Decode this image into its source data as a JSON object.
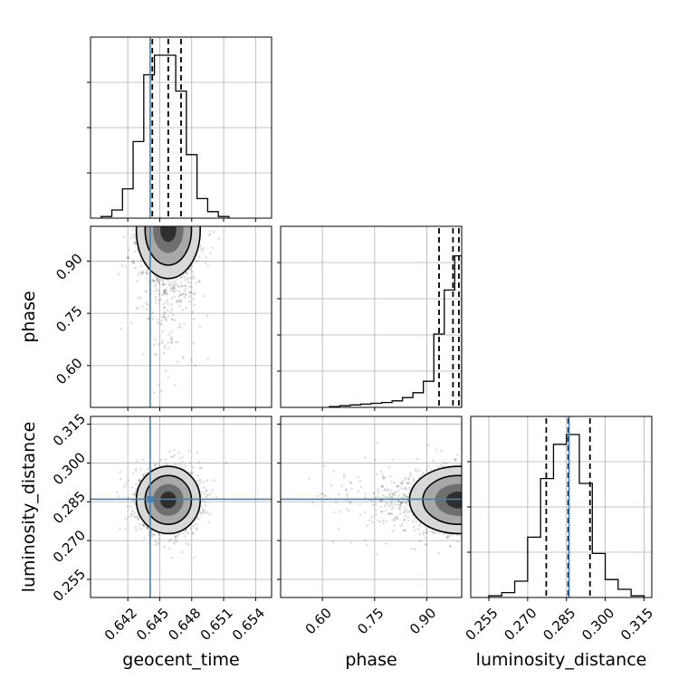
{
  "chart_data": [
    {
      "type": "histogram",
      "panel": "geocent_time",
      "bins": [
        0.6395,
        0.6405,
        0.6415,
        0.6425,
        0.6435,
        0.6445,
        0.6455,
        0.6465,
        0.6475,
        0.6485,
        0.6495,
        0.6505,
        0.6515
      ],
      "counts": [
        1,
        5,
        18,
        47,
        88,
        100,
        100,
        78,
        39,
        12,
        4,
        1
      ],
      "quantiles": [
        0.6443,
        0.6458,
        0.647
      ],
      "truth": 0.6441,
      "xlim": [
        0.6385,
        0.6555
      ],
      "ylim": [
        0,
        100
      ],
      "xticks": [
        0.642,
        0.645,
        0.648,
        0.651,
        0.654
      ],
      "xtick_labels": [
        "0.642",
        "0.645",
        "0.648",
        "0.651",
        "0.654"
      ],
      "xlabel": "geocent_time"
    },
    {
      "type": "histogram",
      "panel": "phase",
      "bins": [
        0.62,
        0.65,
        0.68,
        0.71,
        0.74,
        0.77,
        0.8,
        0.83,
        0.86,
        0.89,
        0.92,
        0.95,
        0.98,
        1.0
      ],
      "counts": [
        0.5,
        1,
        1.5,
        2,
        2.5,
        3,
        4,
        6,
        9,
        16,
        45,
        72,
        93
      ],
      "quantiles": [
        0.935,
        0.975,
        0.992
      ],
      "xlim": [
        0.48,
        1.0
      ],
      "ylim": [
        0,
        100
      ],
      "xticks": [
        0.6,
        0.75,
        0.9
      ],
      "xtick_labels": [
        "0.60",
        "0.75",
        "0.90"
      ],
      "xlabel": "phase"
    },
    {
      "type": "histogram",
      "panel": "luminosity_distance",
      "bins": [
        0.255,
        0.26,
        0.265,
        0.27,
        0.275,
        0.28,
        0.285,
        0.29,
        0.295,
        0.3,
        0.305,
        0.31,
        0.315
      ],
      "counts": [
        1,
        3,
        10,
        37,
        73,
        94,
        100,
        70,
        27,
        11,
        5,
        1
      ],
      "quantiles": [
        0.2772,
        0.2857,
        0.2941
      ],
      "truth": 0.286,
      "xlim": [
        0.248,
        0.318
      ],
      "ylim": [
        0,
        100
      ],
      "xticks": [
        0.255,
        0.27,
        0.285,
        0.3,
        0.315
      ],
      "xtick_labels": [
        "0.255",
        "0.270",
        "0.285",
        "0.300",
        "0.315"
      ],
      "xlabel": "luminosity_distance"
    },
    {
      "type": "scatter",
      "panel": "phase vs geocent_time",
      "center": [
        0.6458,
        0.99
      ],
      "spread": [
        0.0015,
        0.07
      ],
      "truth": [
        0.6441,
        null
      ],
      "xlim": [
        0.6385,
        0.6555
      ],
      "ylim": [
        0.48,
        1.0
      ],
      "yticks": [
        0.6,
        0.75,
        0.9
      ],
      "ytick_labels": [
        "0.60",
        "0.75",
        "0.90"
      ],
      "ylabel": "phase"
    },
    {
      "type": "scatter",
      "panel": "luminosity_distance vs geocent_time",
      "center": [
        0.6458,
        0.2857
      ],
      "spread": [
        0.0015,
        0.0065
      ],
      "truth": [
        0.6441,
        0.286
      ],
      "xlim": [
        0.6385,
        0.6555
      ],
      "ylim": [
        0.248,
        0.318
      ],
      "yticks": [
        0.255,
        0.27,
        0.285,
        0.3,
        0.315
      ],
      "ytick_labels": [
        "0.255",
        "0.270",
        "0.285",
        "0.300",
        "0.315"
      ],
      "ylabel": "luminosity_distance"
    },
    {
      "type": "scatter",
      "panel": "luminosity_distance vs phase",
      "center": [
        0.99,
        0.2857
      ],
      "spread": [
        0.07,
        0.0065
      ],
      "truth": [
        null,
        0.286
      ],
      "xlim": [
        0.48,
        1.0
      ],
      "ylim": [
        0.248,
        0.318
      ]
    }
  ],
  "colors": {
    "truth": "#4682b4",
    "hist": "#000000",
    "grid": "#b0b0b0"
  }
}
